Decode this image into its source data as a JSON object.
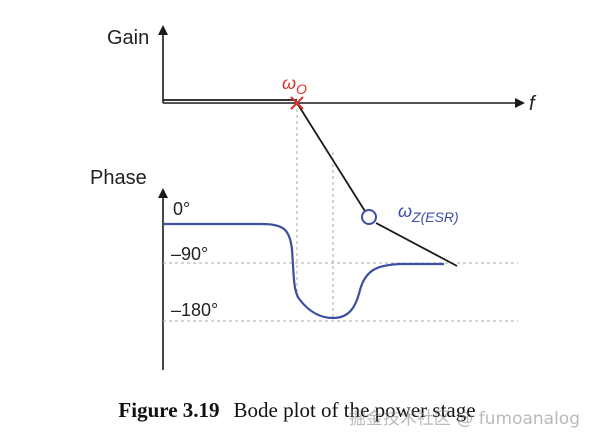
{
  "axes": {
    "gain_label": "Gain",
    "phase_label": "Phase",
    "frequency_label": "f"
  },
  "annotations": {
    "corner_frequency": {
      "symbol": "ω",
      "subscript": "O"
    },
    "esr_zero": {
      "symbol": "ω",
      "subscript": "Z(ESR)"
    }
  },
  "phase_ticks": [
    "0°",
    "–90°",
    "–180°"
  ],
  "caption": {
    "number": "Figure 3.19",
    "text": "Bode plot of the power stage"
  },
  "watermark": "掘金技术社区 @ fumoanalog",
  "colors": {
    "gain_line": "#1a1a1a",
    "phase_curve": "#3b4fa0",
    "corner_marker": "#d9312b",
    "esr_label": "#3b4fa0",
    "guide_lines": "#aaaaaa"
  }
}
